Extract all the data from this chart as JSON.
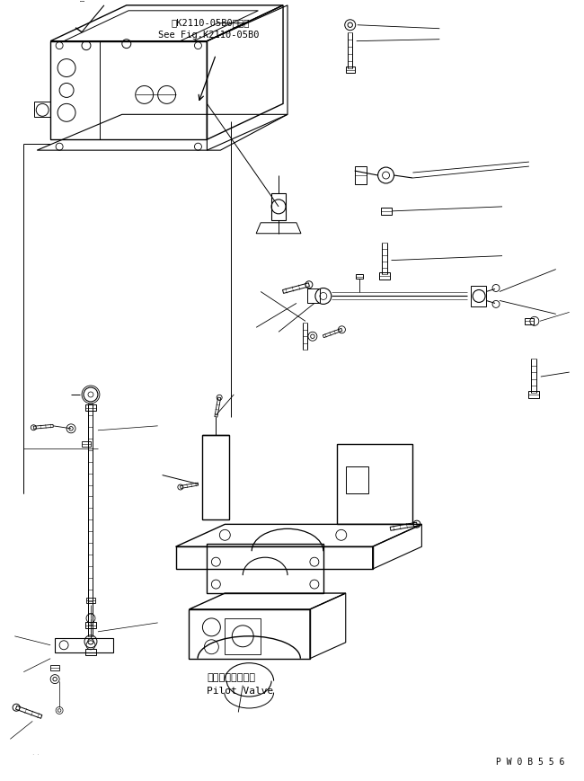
{
  "bg_color": "#ffffff",
  "line_color": "#000000",
  "fig_width": 6.5,
  "fig_height": 8.7,
  "dpi": 100,
  "ref_text_line1": "第K2110-05B0図参照",
  "ref_text_line2": "See Fig.K2110-05B0",
  "label_pilot_valve_jp": "パイロットバルブ",
  "label_pilot_valve_en": "Pilot Valve",
  "watermark": "P W 0 B 5 5 6"
}
